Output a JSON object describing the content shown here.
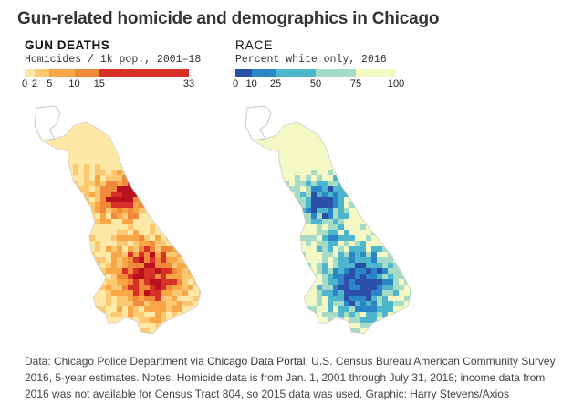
{
  "title": "Gun-related homicide and demographics in Chicago",
  "left_map": {
    "heading": "GUN DEATHS",
    "subheading": "Homicides / 1k pop., 2001–18",
    "legend": {
      "stops": [
        0,
        2,
        5,
        10,
        15,
        33
      ],
      "tick_labels": [
        "0",
        "2",
        "5",
        "10",
        "15",
        "33"
      ],
      "colors": [
        "#fde8a6",
        "#fdc872",
        "#f9a646",
        "#f08a3a",
        "#d73027",
        "#b8101f"
      ]
    }
  },
  "right_map": {
    "heading": "RACE",
    "subheading": "Percent white only, 2016",
    "legend": {
      "stops": [
        0,
        10,
        25,
        50,
        75,
        100
      ],
      "tick_labels": [
        "0",
        "10",
        "25",
        "50",
        "75",
        "100"
      ],
      "colors": [
        "#2c4fa8",
        "#2a86c7",
        "#4db6cc",
        "#a6dcc6",
        "#f3f8c4"
      ]
    }
  },
  "source": {
    "prefix": "Data: Chicago Police Department via ",
    "link_text": "Chicago Data Portal",
    "suffix": ", U.S. Census Bureau American Community Survey 2016, 5-year estimates. Notes: Homicide data is from Jan. 1, 2001 through July 31, 2018; income data from 2016 was not available for Census Tract 804, so 2015 data was used. Graphic: Harry Stevens/Axios"
  }
}
